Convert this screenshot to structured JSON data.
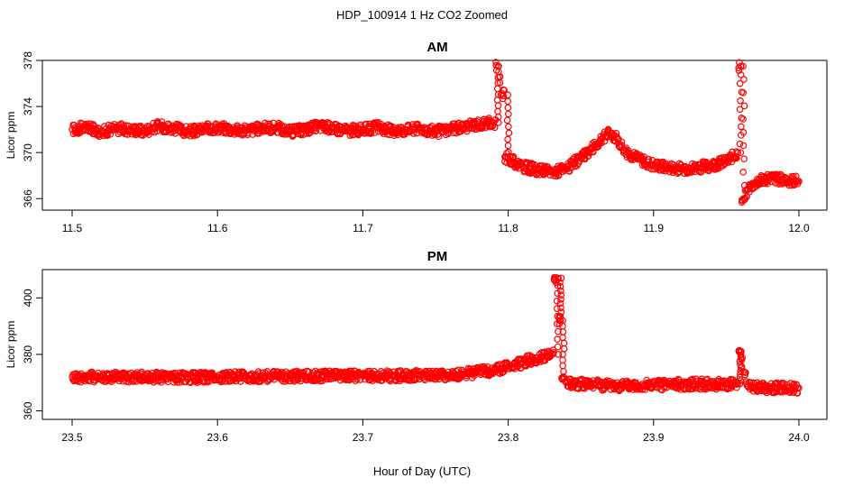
{
  "figure": {
    "title": "HDP_100914  1 Hz CO2 Zoomed",
    "xlabel": "Hour of Day (UTC)"
  },
  "style": {
    "point_color": "#ff0000",
    "axis_color": "#000000"
  },
  "chart_data": [
    {
      "type": "scatter",
      "title": "AM",
      "ylabel": "Licor ppm",
      "xlim": [
        11.5,
        12.0
      ],
      "ylim": [
        365,
        378
      ],
      "xticks": [
        "11.5",
        "11.6",
        "11.7",
        "11.8",
        "11.9",
        "12.0"
      ],
      "yticks": [
        "366",
        "370",
        "374",
        "378"
      ],
      "ytick_values": [
        366,
        370,
        374,
        378
      ],
      "series": [
        {
          "name": "CO2",
          "x": [
            11.5,
            11.51,
            11.52,
            11.53,
            11.54,
            11.55,
            11.56,
            11.57,
            11.58,
            11.59,
            11.6,
            11.61,
            11.62,
            11.63,
            11.64,
            11.65,
            11.66,
            11.67,
            11.68,
            11.69,
            11.7,
            11.71,
            11.72,
            11.73,
            11.74,
            11.75,
            11.76,
            11.77,
            11.78,
            11.79,
            11.793,
            11.795,
            11.8,
            11.81,
            11.82,
            11.83,
            11.84,
            11.85,
            11.86,
            11.865,
            11.87,
            11.875,
            11.88,
            11.89,
            11.9,
            11.91,
            11.92,
            11.93,
            11.94,
            11.95,
            11.958,
            11.96,
            11.962,
            11.965,
            11.97,
            11.98,
            11.99,
            12.0
          ],
          "y": [
            372.0,
            372.2,
            371.8,
            372.1,
            372.0,
            371.9,
            372.3,
            372.1,
            371.8,
            372.0,
            372.2,
            372.0,
            371.9,
            372.1,
            372.2,
            371.8,
            372.0,
            372.3,
            372.1,
            371.9,
            372.0,
            372.2,
            371.9,
            372.0,
            372.1,
            371.8,
            372.0,
            372.2,
            372.5,
            372.6,
            377.5,
            375.0,
            369.5,
            368.8,
            368.5,
            368.3,
            368.6,
            369.5,
            370.6,
            371.3,
            371.7,
            371.2,
            370.2,
            369.4,
            368.9,
            368.7,
            368.6,
            368.7,
            368.9,
            369.2,
            370.0,
            377.5,
            366.0,
            366.8,
            367.4,
            367.8,
            367.6,
            367.5
          ]
        }
      ]
    },
    {
      "type": "scatter",
      "title": "PM",
      "ylabel": "Licor ppm",
      "xlim": [
        23.5,
        24.0
      ],
      "ylim": [
        357,
        410
      ],
      "xticks": [
        "23.5",
        "23.6",
        "23.7",
        "23.8",
        "23.9",
        "24.0"
      ],
      "yticks": [
        "360",
        "380",
        "400"
      ],
      "ytick_values": [
        360,
        380,
        400
      ],
      "series": [
        {
          "name": "CO2",
          "x": [
            23.5,
            23.52,
            23.54,
            23.56,
            23.58,
            23.6,
            23.62,
            23.64,
            23.66,
            23.68,
            23.7,
            23.72,
            23.74,
            23.76,
            23.77,
            23.78,
            23.79,
            23.8,
            23.81,
            23.82,
            23.83,
            23.834,
            23.836,
            23.838,
            23.84,
            23.85,
            23.86,
            23.87,
            23.88,
            23.89,
            23.9,
            23.91,
            23.92,
            23.93,
            23.94,
            23.95,
            23.958,
            23.96,
            23.962,
            23.965,
            23.97,
            23.98,
            23.99,
            24.0
          ],
          "y": [
            372.0,
            372.1,
            371.9,
            372.0,
            371.8,
            372.0,
            372.1,
            372.2,
            372.3,
            372.4,
            372.5,
            372.4,
            372.6,
            372.8,
            373.2,
            373.8,
            374.5,
            375.6,
            377.2,
            378.8,
            380.0,
            407.0,
            392.0,
            372.0,
            370.0,
            369.5,
            369.2,
            369.0,
            368.9,
            369.0,
            369.1,
            369.3,
            369.4,
            369.5,
            369.4,
            369.5,
            369.6,
            381.0,
            374.0,
            368.5,
            368.4,
            368.2,
            368.3,
            368.1
          ]
        }
      ]
    }
  ]
}
